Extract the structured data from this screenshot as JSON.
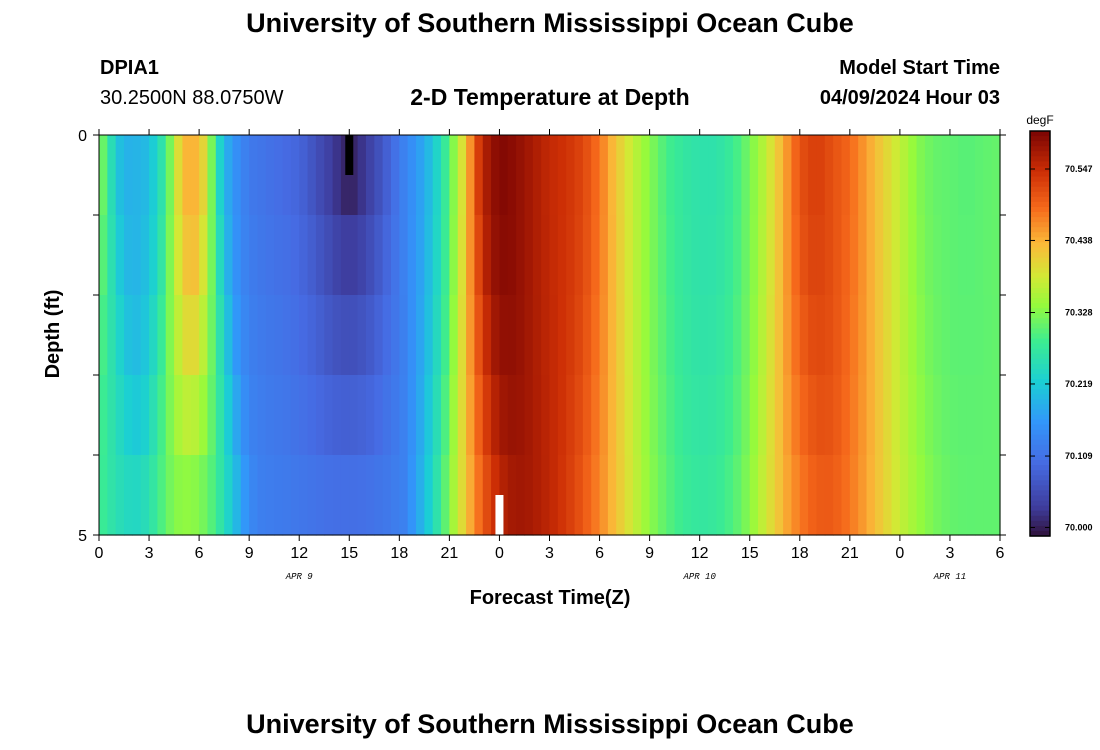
{
  "page": {
    "title": "University of Southern Mississippi Ocean Cube",
    "footer_title": "University of Southern Mississippi Ocean Cube",
    "station_id": "DPIA1",
    "station_coords": "30.2500N  88.0750W",
    "chart_title": "2-D Temperature at Depth",
    "model_start_label": "Model Start Time",
    "model_start_value": "04/09/2024 Hour 03"
  },
  "chart_data": {
    "type": "heatmap",
    "title": "2-D Temperature at Depth",
    "xlabel": "Forecast Time(Z)",
    "ylabel": "Depth (ft)",
    "x_tick_labels": [
      "0",
      "3",
      "6",
      "9",
      "12",
      "15",
      "18",
      "21",
      "0",
      "3",
      "6",
      "9",
      "12",
      "15",
      "18",
      "21",
      "0",
      "3",
      "6"
    ],
    "date_labels": [
      {
        "text": "APR 9",
        "hour": 12
      },
      {
        "text": "APR 10",
        "hour": 36
      },
      {
        "text": "APR 11",
        "hour": 51
      }
    ],
    "x_range_hours": [
      0,
      54
    ],
    "y_range_ft": [
      0,
      5
    ],
    "y_tick_labels": [
      {
        "text": "0",
        "depth": 0
      },
      {
        "text": "5",
        "depth": 5
      }
    ],
    "colorbar": {
      "unit": "degF",
      "min": 69.987,
      "max": 70.605,
      "labels": [
        "70.547",
        "70.438",
        "70.328",
        "70.219",
        "70.109",
        "70.000"
      ],
      "label_values": [
        70.547,
        70.438,
        70.328,
        70.219,
        70.109,
        70.0
      ]
    },
    "layers": 5,
    "hour_step": 0.5,
    "surface_temps_degF": [
      [
        0,
        70.34
      ],
      [
        0.5,
        70.28
      ],
      [
        1,
        70.22
      ],
      [
        1.5,
        70.19
      ],
      [
        2,
        70.19
      ],
      [
        3,
        70.2
      ],
      [
        4,
        70.28
      ],
      [
        4.5,
        70.36
      ],
      [
        5,
        70.43
      ],
      [
        5.5,
        70.44
      ],
      [
        6,
        70.43
      ],
      [
        6.5,
        70.38
      ],
      [
        7,
        70.26
      ],
      [
        7.5,
        70.2
      ],
      [
        8,
        70.16
      ],
      [
        9,
        70.12
      ],
      [
        10,
        70.11
      ],
      [
        11,
        70.1
      ],
      [
        12,
        70.09
      ],
      [
        13,
        70.06
      ],
      [
        14,
        70.03
      ],
      [
        15,
        70.0
      ],
      [
        16,
        70.03
      ],
      [
        17,
        70.07
      ],
      [
        18,
        70.12
      ],
      [
        19,
        70.16
      ],
      [
        20,
        70.21
      ],
      [
        21,
        70.3
      ],
      [
        21.5,
        70.36
      ],
      [
        22,
        70.42
      ],
      [
        22.5,
        70.5
      ],
      [
        23,
        70.56
      ],
      [
        24,
        70.6
      ],
      [
        25,
        70.59
      ],
      [
        26,
        70.57
      ],
      [
        27,
        70.55
      ],
      [
        28,
        70.54
      ],
      [
        29,
        70.52
      ],
      [
        30,
        70.48
      ],
      [
        31,
        70.42
      ],
      [
        32,
        70.37
      ],
      [
        33,
        70.33
      ],
      [
        34,
        70.29
      ],
      [
        35,
        70.27
      ],
      [
        36,
        70.26
      ],
      [
        37,
        70.26
      ],
      [
        38,
        70.28
      ],
      [
        39,
        70.32
      ],
      [
        40,
        70.37
      ],
      [
        41,
        70.44
      ],
      [
        42,
        70.51
      ],
      [
        43,
        70.53
      ],
      [
        44,
        70.51
      ],
      [
        45,
        70.49
      ],
      [
        46,
        70.45
      ],
      [
        47,
        70.41
      ],
      [
        48,
        70.37
      ],
      [
        49,
        70.33
      ],
      [
        50,
        70.31
      ],
      [
        52,
        70.3
      ],
      [
        54,
        70.31
      ]
    ],
    "mark_black": {
      "hour": 15,
      "from_depth": 0,
      "to_depth": 0.5
    },
    "mark_white": {
      "hour": 24,
      "from_depth": 4.5,
      "to_depth": 5
    }
  }
}
